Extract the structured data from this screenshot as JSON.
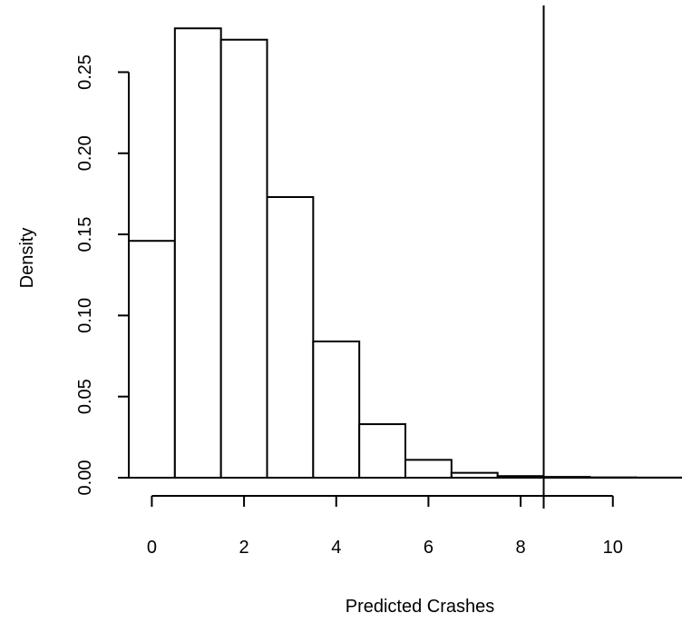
{
  "chart_data": {
    "type": "bar",
    "title": "",
    "xlabel": "Predicted Crashes",
    "ylabel": "Density",
    "bin_edges": [
      -0.5,
      0.5,
      1.5,
      2.5,
      3.5,
      4.5,
      5.5,
      6.5,
      7.5,
      8.5,
      9.5,
      10.5,
      11.5
    ],
    "values": [
      0.146,
      0.277,
      0.27,
      0.173,
      0.084,
      0.033,
      0.011,
      0.003,
      0.001,
      0.0005,
      0.0002,
      0.0001
    ],
    "xlim": [
      -0.5,
      11.5
    ],
    "ylim": [
      0,
      0.29
    ],
    "x_ticks": [
      0,
      2,
      4,
      6,
      8,
      10
    ],
    "x_tick_labels": [
      "0",
      "2",
      "4",
      "6",
      "8",
      "10"
    ],
    "y_ticks": [
      0,
      0.05,
      0.1,
      0.15,
      0.2,
      0.25
    ],
    "y_tick_labels": [
      "0.00",
      "0.05",
      "0.10",
      "0.15",
      "0.20",
      "0.25"
    ],
    "vline_x": 8.5,
    "grid": false,
    "colors": {
      "bar_fill": "#ffffff",
      "stroke": "#000000"
    }
  }
}
